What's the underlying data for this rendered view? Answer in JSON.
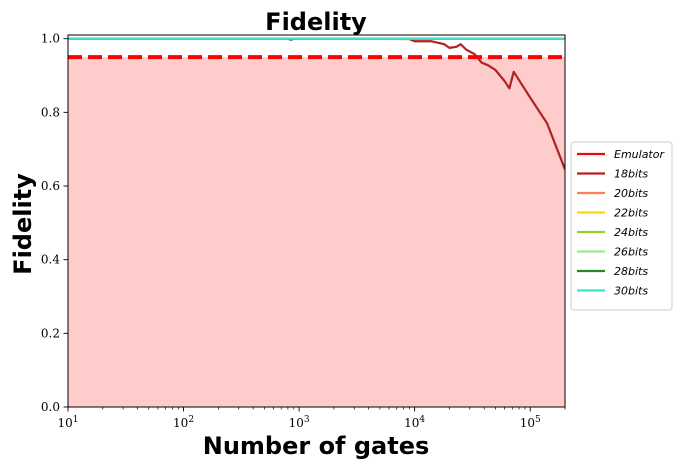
{
  "chart_data": {
    "type": "line",
    "title": "Fidelity",
    "xlabel": "Number of gates",
    "ylabel": "Fidelity",
    "xscale": "log",
    "xlim": [
      10,
      200000
    ],
    "ylim": [
      0.0,
      1.01
    ],
    "x_ticks": [
      {
        "value": 10,
        "mant": "10",
        "exp": "1"
      },
      {
        "value": 100,
        "mant": "10",
        "exp": "2"
      },
      {
        "value": 1000,
        "mant": "10",
        "exp": "3"
      },
      {
        "value": 10000,
        "mant": "10",
        "exp": "4"
      },
      {
        "value": 100000,
        "mant": "10",
        "exp": "5"
      }
    ],
    "y_ticks": [
      {
        "value": 0.0,
        "label": "0.0"
      },
      {
        "value": 0.2,
        "label": "0.2"
      },
      {
        "value": 0.4,
        "label": "0.4"
      },
      {
        "value": 0.6,
        "label": "0.6"
      },
      {
        "value": 0.8,
        "label": "0.8"
      },
      {
        "value": 1.0,
        "label": "1.0"
      }
    ],
    "threshold": {
      "value": 0.95,
      "color": "#ff0000",
      "fill_color": "#ffcccc"
    },
    "grid": false,
    "legend_placement": "center-right, outside plot",
    "series": [
      {
        "name": "Emulator",
        "color": "#ff0000",
        "points": []
      },
      {
        "name": "18bits",
        "color": "#b22222",
        "points": [
          [
            10,
            1.0
          ],
          [
            1000,
            1.0
          ],
          [
            9000,
            0.999
          ],
          [
            10000,
            0.993
          ],
          [
            14000,
            0.993
          ],
          [
            18000,
            0.985
          ],
          [
            20000,
            0.975
          ],
          [
            23000,
            0.978
          ],
          [
            25000,
            0.985
          ],
          [
            28000,
            0.97
          ],
          [
            33000,
            0.958
          ],
          [
            38000,
            0.935
          ],
          [
            43000,
            0.928
          ],
          [
            50000,
            0.915
          ],
          [
            60000,
            0.885
          ],
          [
            66000,
            0.865
          ],
          [
            72000,
            0.91
          ],
          [
            100000,
            0.84
          ],
          [
            140000,
            0.77
          ],
          [
            200000,
            0.645
          ]
        ]
      },
      {
        "name": "20bits",
        "color": "#ff7f50",
        "points": [
          [
            10,
            1.0
          ],
          [
            200000,
            1.0
          ]
        ]
      },
      {
        "name": "22bits",
        "color": "#ffd700",
        "points": [
          [
            10,
            1.0
          ],
          [
            200000,
            1.0
          ]
        ]
      },
      {
        "name": "24bits",
        "color": "#9acd32",
        "points": [
          [
            10,
            1.0
          ],
          [
            200000,
            1.0
          ]
        ]
      },
      {
        "name": "26bits",
        "color": "#90ee90",
        "points": [
          [
            10,
            1.0
          ],
          [
            200000,
            1.0
          ]
        ]
      },
      {
        "name": "28bits",
        "color": "#228b22",
        "points": [
          [
            10,
            1.0
          ],
          [
            800,
            1.0
          ],
          [
            850,
            0.997
          ],
          [
            900,
            1.0
          ],
          [
            200000,
            1.0
          ]
        ]
      },
      {
        "name": "30bits",
        "color": "#40e0d0",
        "points": [
          [
            10,
            1.0
          ],
          [
            200000,
            1.0
          ]
        ]
      }
    ]
  }
}
